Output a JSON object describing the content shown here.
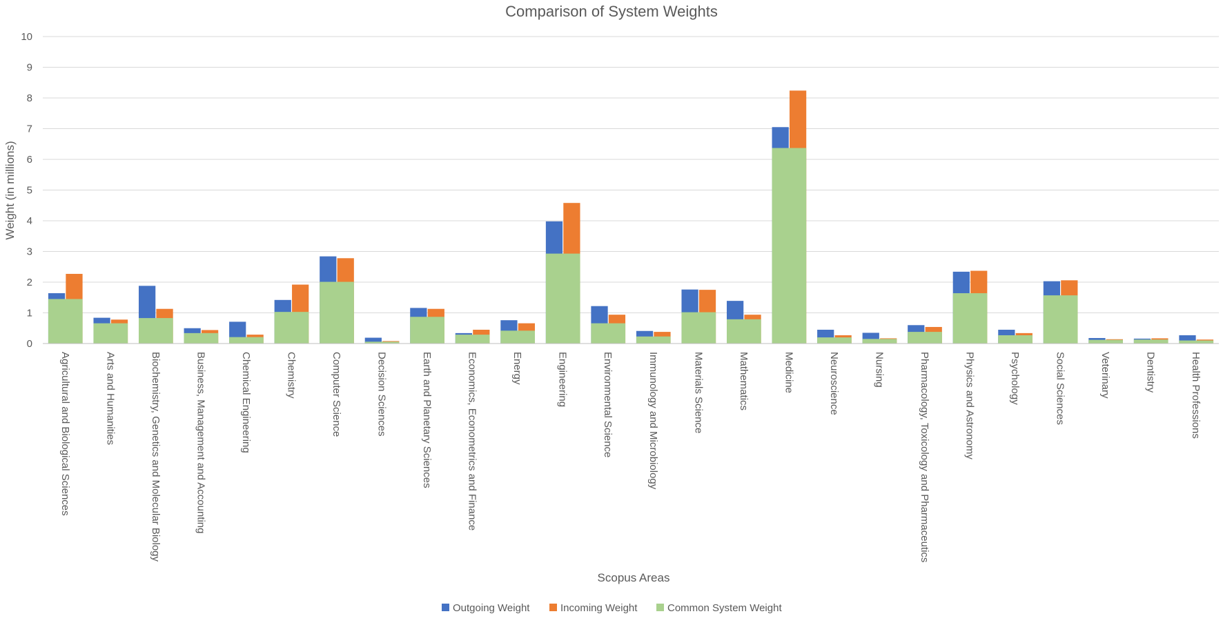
{
  "chart_data": {
    "type": "bar",
    "title": "Comparison of System Weights",
    "xlabel": "Scopus Areas",
    "ylabel": "Weight (in millions)",
    "ylim": [
      0,
      10
    ],
    "yticks": [
      "0",
      "1",
      "2",
      "3",
      "4",
      "5",
      "6",
      "7",
      "8",
      "9",
      "10"
    ],
    "grid": true,
    "legend_position": "bottom-center",
    "categories": [
      "Agricultural and Biological Sciences",
      "Arts and Humanities",
      "Biochemistry, Genetics and Molecular Biology",
      "Business, Management and Accounting",
      "Chemical Engineering",
      "Chemistry",
      "Computer Science",
      "Decision Sciences",
      "Earth and Planetary Sciences",
      "Economics, Econometrics and Finance",
      "Energy",
      "Engineering",
      "Environmental Science",
      "Immunology and Microbiology",
      "Materials Science",
      "Mathematics",
      "Medicine",
      "Neuroscience",
      "Nursing",
      "Pharmacology, Toxicology and Pharmaceutics",
      "Physics and Astronomy",
      "Psychology",
      "Social Sciences",
      "Veterinary",
      "Dentistry",
      "Health Professions"
    ],
    "series": [
      {
        "name": "Outgoing Weight",
        "color": "#4472C4",
        "values": [
          1.64,
          0.84,
          1.88,
          0.5,
          0.71,
          1.42,
          2.84,
          0.19,
          1.16,
          0.34,
          0.76,
          3.98,
          1.22,
          0.41,
          1.76,
          1.39,
          7.05,
          0.45,
          0.35,
          0.6,
          2.34,
          0.45,
          2.03,
          0.18,
          0.16,
          0.27
        ]
      },
      {
        "name": "Incoming Weight",
        "color": "#ED7D31",
        "values": [
          2.27,
          0.78,
          1.13,
          0.44,
          0.29,
          1.92,
          2.78,
          0.08,
          1.13,
          0.45,
          0.66,
          4.58,
          0.94,
          0.38,
          1.75,
          0.94,
          8.24,
          0.27,
          0.17,
          0.54,
          2.37,
          0.34,
          2.06,
          0.14,
          0.17,
          0.13
        ]
      },
      {
        "name": "Common System Weight",
        "color": "#A9D18E",
        "values": [
          1.45,
          0.66,
          0.83,
          0.34,
          0.21,
          1.03,
          2.01,
          0.06,
          0.87,
          0.29,
          0.42,
          2.93,
          0.66,
          0.23,
          1.02,
          0.79,
          6.37,
          0.2,
          0.15,
          0.38,
          1.64,
          0.27,
          1.57,
          0.12,
          0.13,
          0.1
        ]
      }
    ]
  }
}
